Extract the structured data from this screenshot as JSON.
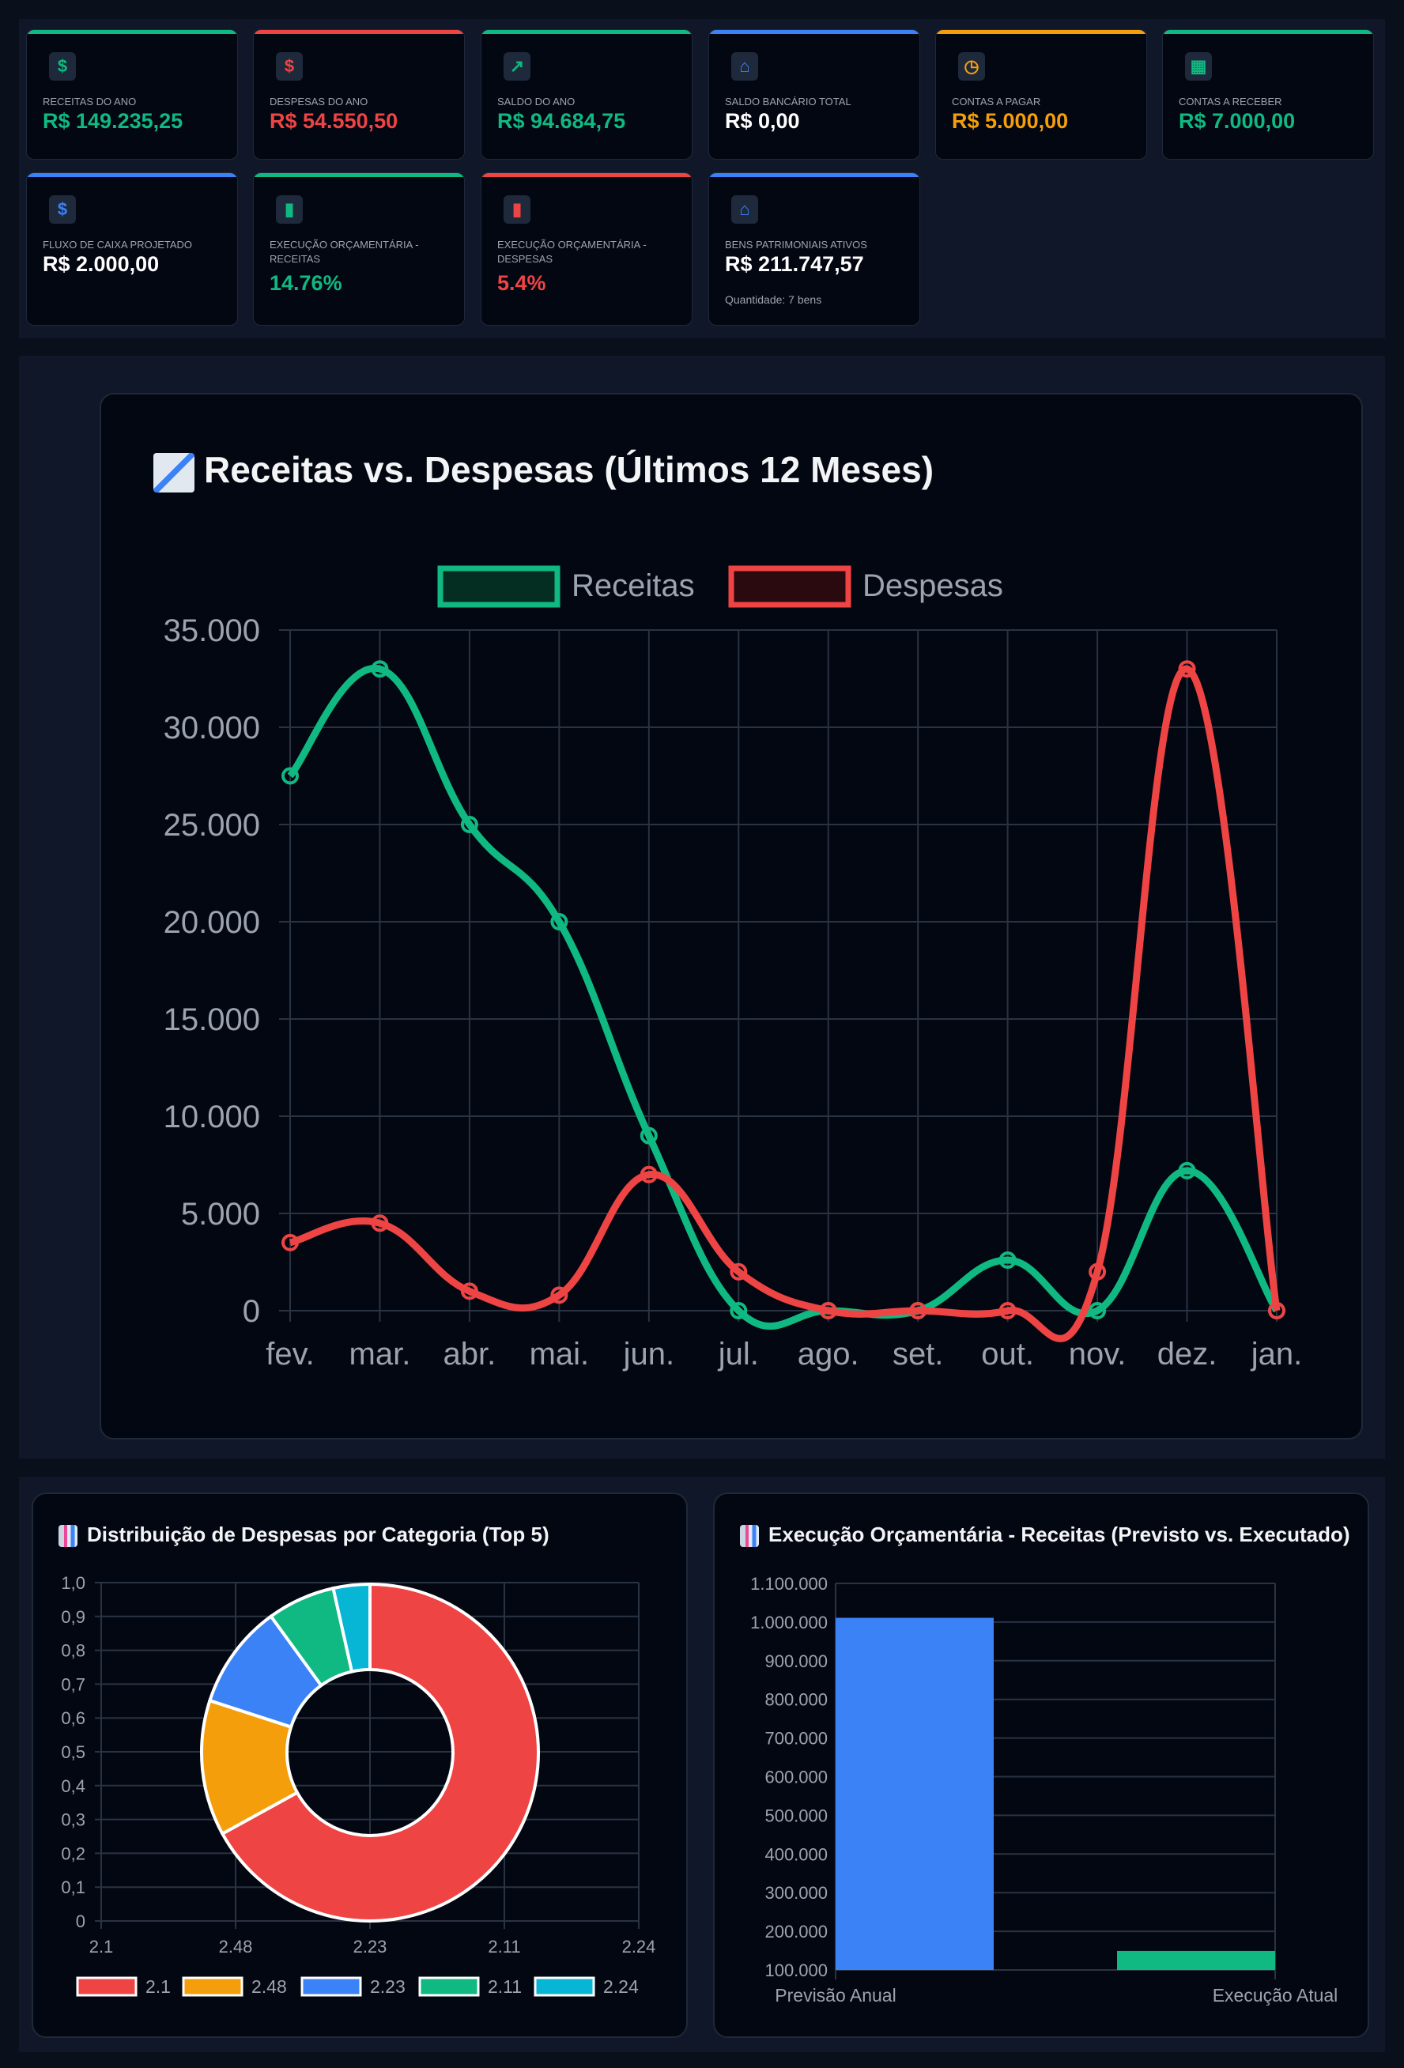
{
  "kpis": [
    {
      "label": "Receitas do Ano",
      "value": "R$ 149.235,25",
      "color": "#10b981",
      "bar": "#10b981",
      "icon": "money-bag-icon",
      "glyph": "$"
    },
    {
      "label": "Despesas do Ano",
      "value": "R$ 54.550,50",
      "color": "#ef4444",
      "bar": "#ef4444",
      "icon": "money-with-wings-icon",
      "glyph": "$"
    },
    {
      "label": "Saldo do Ano",
      "value": "R$ 94.684,75",
      "color": "#10b981",
      "bar": "#10b981",
      "icon": "chart-increasing-icon",
      "glyph": "↗"
    },
    {
      "label": "Saldo Bancário Total",
      "value": "R$ 0,00",
      "color": "#ffffff",
      "bar": "#3b82f6",
      "icon": "bank-icon",
      "glyph": "⌂"
    },
    {
      "label": "Contas a Pagar",
      "value": "R$ 5.000,00",
      "color": "#f59e0b",
      "bar": "#f59e0b",
      "icon": "alarm-clock-icon",
      "glyph": "◷"
    },
    {
      "label": "Contas a Receber",
      "value": "R$ 7.000,00",
      "color": "#10b981",
      "bar": "#10b981",
      "icon": "calendar-icon",
      "glyph": "▦"
    },
    {
      "label": "Fluxo de Caixa Projetado",
      "value": "R$ 2.000,00",
      "color": "#ffffff",
      "bar": "#3b82f6",
      "icon": "dollar-banknote-icon",
      "glyph": "$"
    },
    {
      "label": "Execução Orçamentária - Receitas",
      "value": "14.76%",
      "color": "#10b981",
      "bar": "#10b981",
      "icon": "bar-chart-icon",
      "glyph": "▮"
    },
    {
      "label": "Execução Orçamentária - Despesas",
      "value": "5.4%",
      "color": "#ef4444",
      "bar": "#ef4444",
      "icon": "bar-chart-icon",
      "glyph": "▮"
    },
    {
      "label": "Bens Patrimoniais Ativos",
      "value": "R$ 211.747,57",
      "color": "#ffffff",
      "bar": "#3b82f6",
      "icon": "classical-building-icon",
      "glyph": "⌂",
      "sub": "Quantidade: 7 bens"
    }
  ],
  "chart_data": [
    {
      "type": "line",
      "title": "Receitas vs. Despesas (Últimos 12 Meses)",
      "categories": [
        "fev.",
        "mar.",
        "abr.",
        "mai.",
        "jun.",
        "jul.",
        "ago.",
        "set.",
        "out.",
        "nov.",
        "dez.",
        "jan."
      ],
      "series": [
        {
          "name": "Receitas",
          "color": "#10b981",
          "values": [
            27500,
            33000,
            25000,
            20000,
            9000,
            0,
            0,
            0,
            2600,
            0,
            7200,
            0
          ]
        },
        {
          "name": "Despesas",
          "color": "#ef4444",
          "values": [
            3500,
            4500,
            1000,
            800,
            7000,
            2000,
            0,
            0,
            0,
            2000,
            33000,
            0
          ]
        }
      ],
      "ylim": [
        0,
        35000
      ],
      "yticks": [
        "0",
        "5.000",
        "10.000",
        "15.000",
        "20.000",
        "25.000",
        "30.000",
        "35.000"
      ],
      "legend": "top",
      "grid": true
    },
    {
      "type": "pie",
      "title": "Distribuição de Despesas por Categoria (Top 5)",
      "labels": [
        "2.1",
        "2.48",
        "2.23",
        "2.11",
        "2.24"
      ],
      "values": [
        0.67,
        0.13,
        0.1,
        0.065,
        0.035
      ],
      "colors": [
        "#ef4444",
        "#f59e0b",
        "#3b82f6",
        "#10b981",
        "#06b6d4"
      ],
      "yticks": [
        "0",
        "0,1",
        "0,2",
        "0,3",
        "0,4",
        "0,5",
        "0,6",
        "0,7",
        "0,8",
        "0,9",
        "1,0"
      ],
      "xticks": [
        "2.1",
        "2.48",
        "2.23",
        "2.11",
        "2.24"
      ],
      "legend": "bottom"
    },
    {
      "type": "bar",
      "title": "Execução Orçamentária - Receitas (Previsto vs. Executado)",
      "categories": [
        "Previsão Anual",
        "Execução Atual"
      ],
      "values": [
        1011000,
        149235.25
      ],
      "colors": [
        "#3b82f6",
        "#10b981"
      ],
      "ylim": [
        100000,
        1100000
      ],
      "yticks": [
        "100.000",
        "200.000",
        "300.000",
        "400.000",
        "500.000",
        "600.000",
        "700.000",
        "800.000",
        "900.000",
        "1.000.000",
        "1.100.000"
      ]
    }
  ]
}
